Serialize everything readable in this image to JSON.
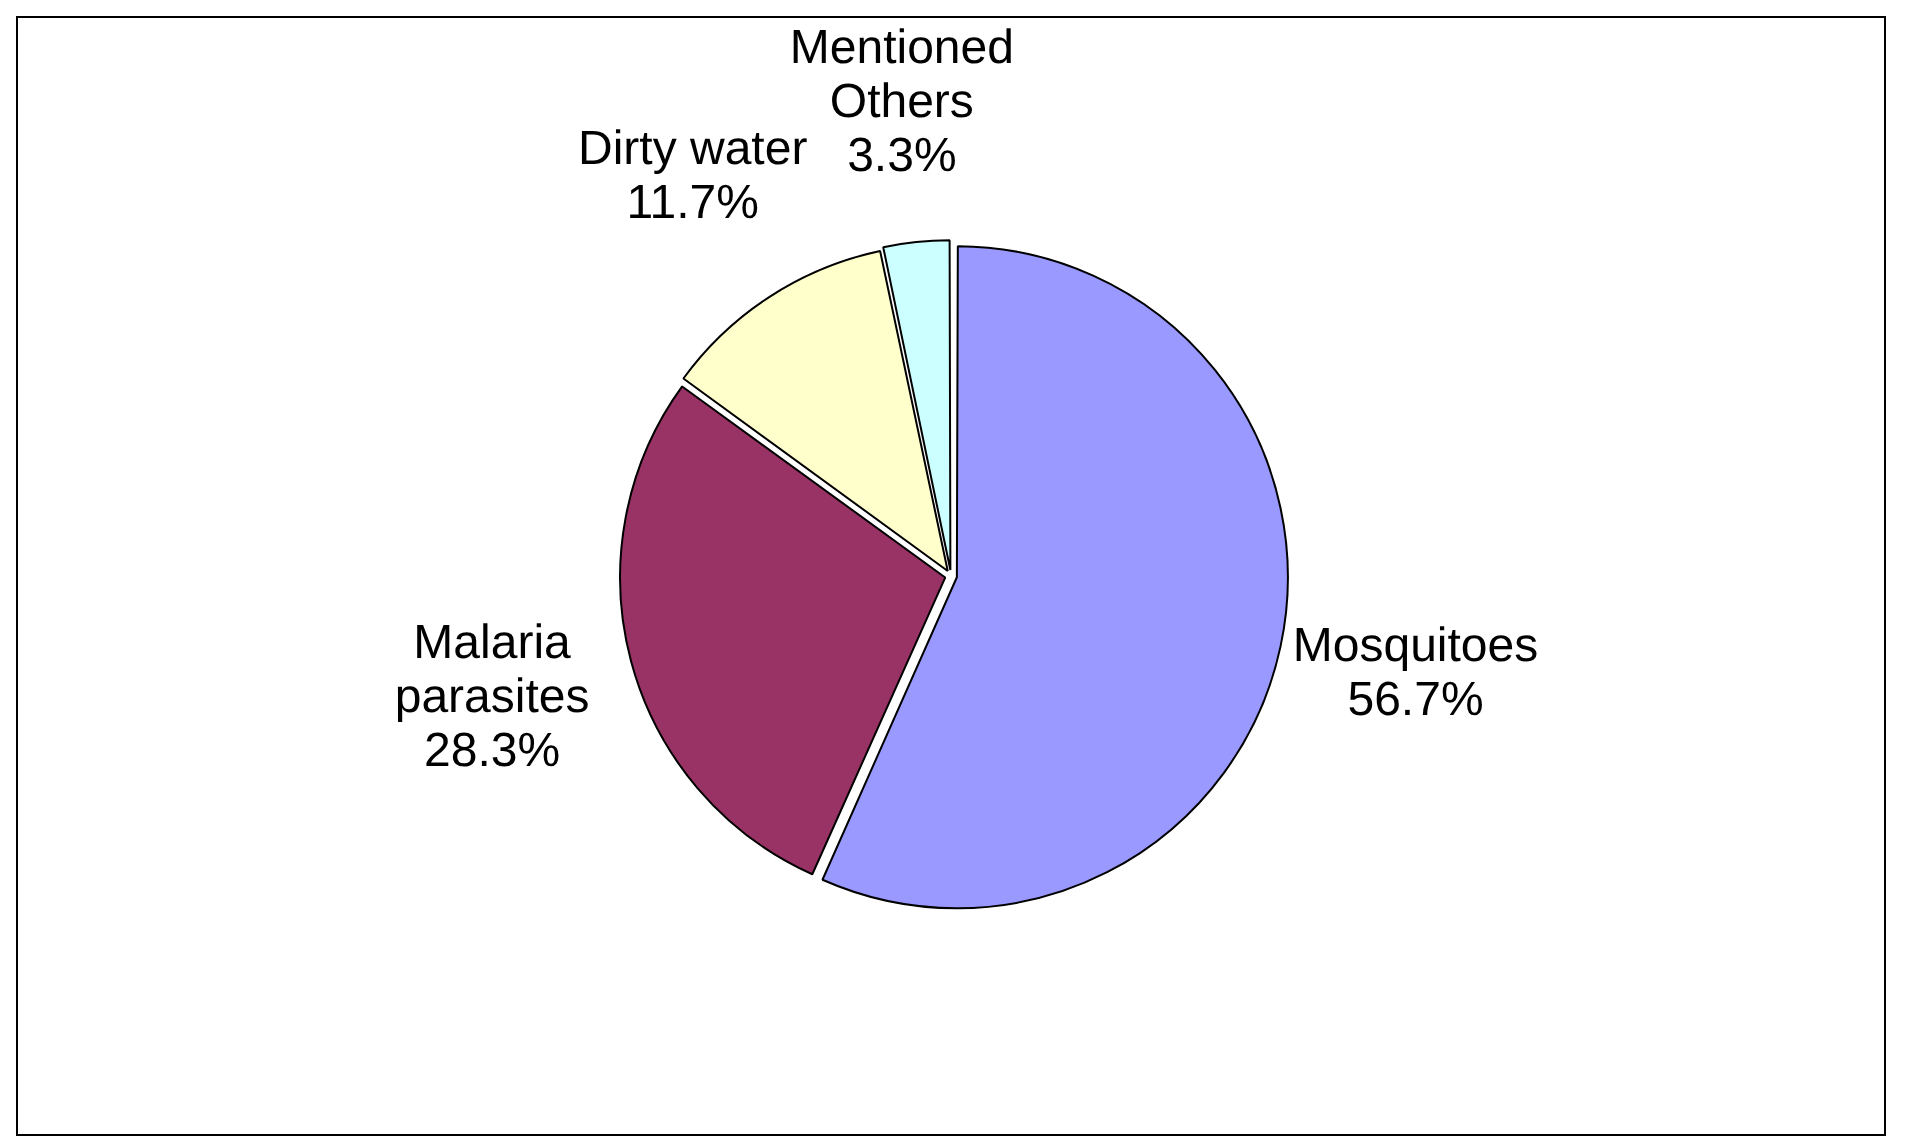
{
  "chart_data": {
    "type": "pie",
    "categories": [
      "Mosquitoes",
      "Malaria parasites",
      "Dirty water",
      "Mentioned Others"
    ],
    "values": [
      56.7,
      28.3,
      11.7,
      3.3
    ],
    "value_labels": [
      "56.7%",
      "28.3%",
      "11.7%",
      "3.3%"
    ],
    "colors": [
      "#9999ff",
      "#993366",
      "#ffffcc",
      "#ccffff"
    ],
    "legend": false
  }
}
